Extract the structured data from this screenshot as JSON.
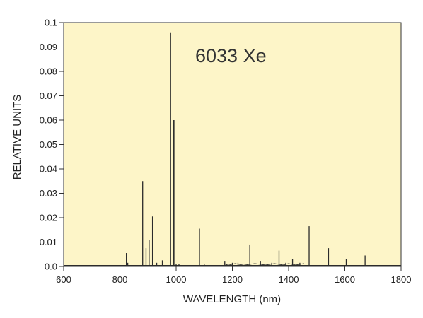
{
  "chart_data": {
    "type": "line",
    "title": "",
    "annotation": "6033 Xe",
    "xlabel": "WAVELENGTH (nm)",
    "ylabel": "RELATIVE UNITS",
    "xlim": [
      600,
      1800
    ],
    "ylim": [
      0,
      0.1
    ],
    "x_ticks": [
      600,
      800,
      1000,
      1200,
      1400,
      1600,
      1800
    ],
    "x_tick_labels": [
      "600",
      "800",
      "1000",
      "1200",
      "1400",
      "1600",
      "1800"
    ],
    "y_ticks": [
      0,
      0.01,
      0.02,
      0.03,
      0.04,
      0.05,
      0.06,
      0.07,
      0.08,
      0.09,
      0.1
    ],
    "y_tick_labels": [
      "0.0",
      "0.01",
      "0.02",
      "0.03",
      "0.04",
      "0.05",
      "0.06",
      "0.07",
      "0.08",
      "0.09",
      "0.1"
    ],
    "grid": false,
    "colors": {
      "plot_background": "#FDF5C8",
      "line": "#2b2b2b",
      "frame": "#333333"
    },
    "series": [
      {
        "name": "6033 Xe",
        "peaks": [
          {
            "x": 823,
            "y": 0.0055
          },
          {
            "x": 828,
            "y": 0.0015
          },
          {
            "x": 881,
            "y": 0.035
          },
          {
            "x": 893,
            "y": 0.0075
          },
          {
            "x": 904,
            "y": 0.011
          },
          {
            "x": 916,
            "y": 0.0205
          },
          {
            "x": 931,
            "y": 0.0015
          },
          {
            "x": 951,
            "y": 0.0025
          },
          {
            "x": 980,
            "y": 0.096
          },
          {
            "x": 992,
            "y": 0.06
          },
          {
            "x": 1000,
            "y": 0.001
          },
          {
            "x": 1010,
            "y": 0.001
          },
          {
            "x": 1083,
            "y": 0.0155
          },
          {
            "x": 1100,
            "y": 0.001
          },
          {
            "x": 1173,
            "y": 0.002
          },
          {
            "x": 1200,
            "y": 0.0015
          },
          {
            "x": 1220,
            "y": 0.0015
          },
          {
            "x": 1262,
            "y": 0.009
          },
          {
            "x": 1300,
            "y": 0.002
          },
          {
            "x": 1340,
            "y": 0.0015
          },
          {
            "x": 1366,
            "y": 0.0065
          },
          {
            "x": 1390,
            "y": 0.0015
          },
          {
            "x": 1414,
            "y": 0.003
          },
          {
            "x": 1440,
            "y": 0.0015
          },
          {
            "x": 1473,
            "y": 0.0165
          },
          {
            "x": 1542,
            "y": 0.0075
          },
          {
            "x": 1605,
            "y": 0.003
          },
          {
            "x": 1672,
            "y": 0.0045
          }
        ],
        "ripple": [
          {
            "x": 1170,
            "y": 0.0012
          },
          {
            "x": 1185,
            "y": 0.0005
          },
          {
            "x": 1210,
            "y": 0.0012
          },
          {
            "x": 1240,
            "y": 0.0005
          },
          {
            "x": 1280,
            "y": 0.0012
          },
          {
            "x": 1318,
            "y": 0.0006
          },
          {
            "x": 1350,
            "y": 0.0012
          },
          {
            "x": 1380,
            "y": 0.0006
          },
          {
            "x": 1400,
            "y": 0.0012
          },
          {
            "x": 1425,
            "y": 0.0006
          },
          {
            "x": 1455,
            "y": 0.0012
          }
        ]
      }
    ]
  }
}
